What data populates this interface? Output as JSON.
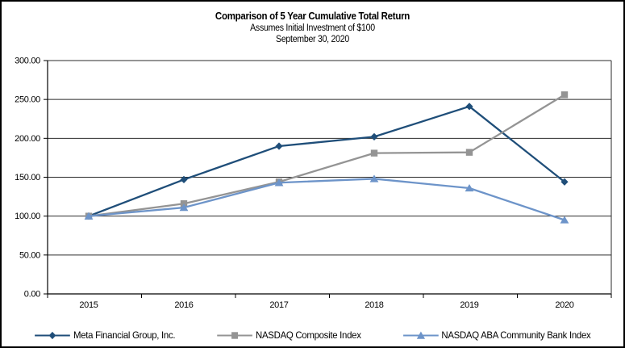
{
  "chart_data": {
    "type": "line",
    "title": "Comparison of 5 Year Cumulative Total Return",
    "subtitle": "Assumes Initial Investment of $100",
    "date_label": "September 30, 2020",
    "categories": [
      "2015",
      "2016",
      "2017",
      "2018",
      "2019",
      "2020"
    ],
    "series": [
      {
        "name": "Meta Financial Group, Inc.",
        "marker": "diamond",
        "color": "#1F4E79",
        "values": [
          100.0,
          147.0,
          190.0,
          202.0,
          241.0,
          144.0
        ]
      },
      {
        "name": "NASDAQ Composite Index",
        "marker": "square",
        "color": "#949494",
        "values": [
          100.0,
          116.0,
          144.0,
          181.0,
          182.0,
          256.0
        ]
      },
      {
        "name": "NASDAQ ABA Community Bank Index",
        "marker": "triangle",
        "color": "#6D94C9",
        "values": [
          100.0,
          111.0,
          143.0,
          148.0,
          136.0,
          95.0
        ]
      }
    ],
    "xlabel": "",
    "ylabel": "",
    "ylim": [
      0,
      300
    ],
    "ytick_step": 50,
    "ytick_decimals": 2,
    "ytick_labels": [
      "0.00",
      "50.00",
      "100.00",
      "150.00",
      "200.00",
      "250.00",
      "300.00"
    ],
    "grid": true,
    "legend_position": "bottom",
    "axis_color": "#000000",
    "grid_color": "#2b2b2b"
  }
}
